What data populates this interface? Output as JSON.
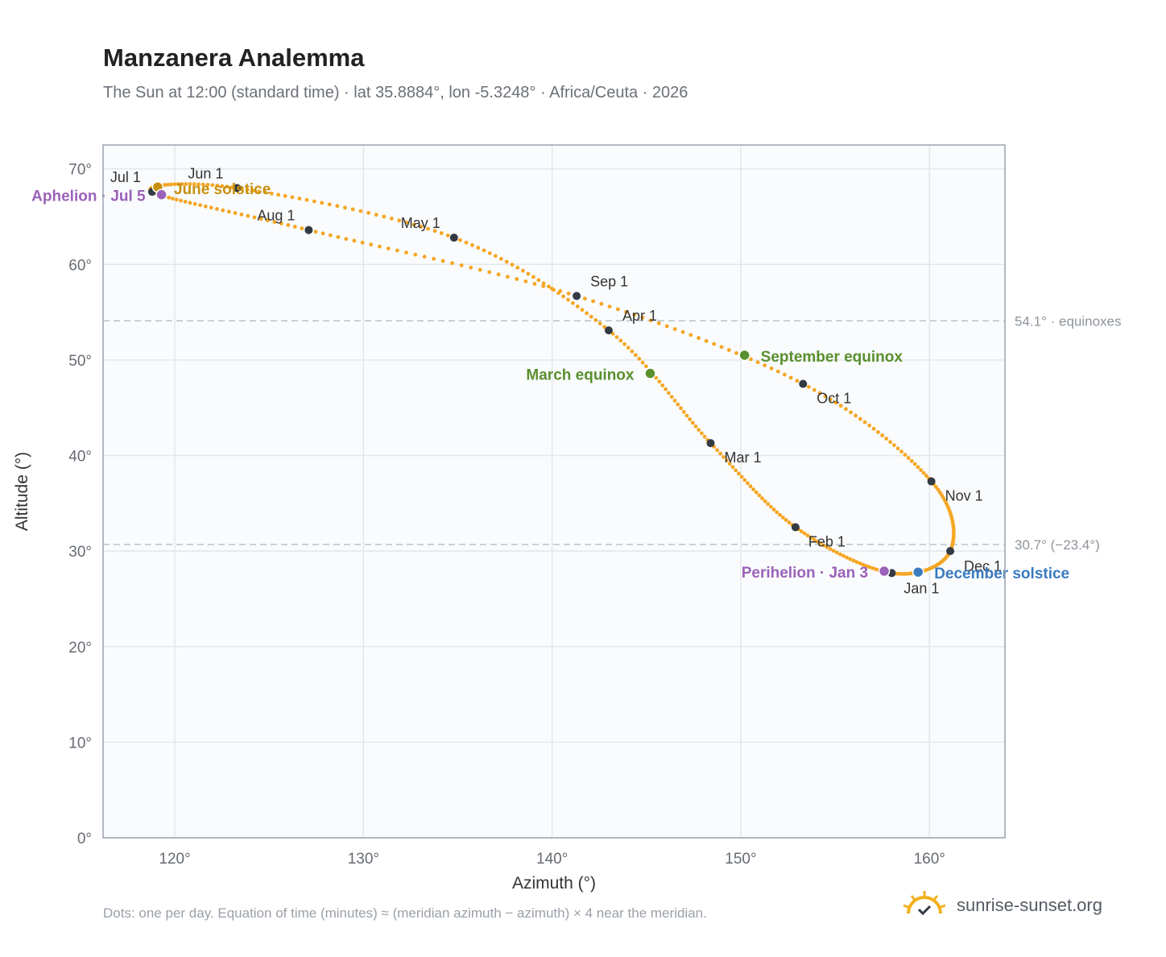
{
  "header": {
    "title": "Manzanera Analemma",
    "subtitle": "The Sun at 12:00 (standard time) · lat 35.8884°, lon -5.3248° · Africa/Ceuta · 2026"
  },
  "footer": {
    "note": "Dots: one per day. Equation of time (minutes) ≈ (meridian azimuth − azimuth) × 4 near the meridian.",
    "brand": "sunrise-sunset.org"
  },
  "colors": {
    "curve": "#f5a623",
    "month_dot": "#333a44",
    "equinox": "#5a8f2e",
    "june_solstice": "#c8900f",
    "december_solstice": "#3a7abf",
    "apsis": "#9b62b8",
    "grid": "#e3e7ec",
    "plot_bg": "#f9fbfd",
    "ref_line": "#b9c2cc"
  },
  "chart_data": {
    "type": "scatter",
    "xlabel": "Azimuth (°)",
    "ylabel": "Altitude (°)",
    "xlim": [
      116.2,
      164
    ],
    "ylim": [
      0,
      72.5
    ],
    "x_ticks": [
      120,
      130,
      140,
      150,
      160
    ],
    "y_ticks": [
      0,
      10,
      20,
      30,
      40,
      50,
      60,
      70
    ],
    "tick_suffix": "°",
    "grid": true,
    "reference_lines": [
      {
        "y": 54.1,
        "label": "54.1° · equinoxes"
      },
      {
        "y": 30.7,
        "label": "30.7° (−23.4°)"
      }
    ],
    "month_markers": [
      {
        "label": "Jan 1",
        "x": 158.0,
        "y": 27.7
      },
      {
        "label": "Feb 1",
        "x": 152.9,
        "y": 32.5
      },
      {
        "label": "Mar 1",
        "x": 148.4,
        "y": 41.3
      },
      {
        "label": "Apr 1",
        "x": 143.0,
        "y": 53.1
      },
      {
        "label": "May 1",
        "x": 134.8,
        "y": 62.8
      },
      {
        "label": "Jun 1",
        "x": 123.3,
        "y": 68.0
      },
      {
        "label": "Jul 1",
        "x": 118.8,
        "y": 67.6
      },
      {
        "label": "Aug 1",
        "x": 127.1,
        "y": 63.6
      },
      {
        "label": "Sep 1",
        "x": 141.3,
        "y": 56.7
      },
      {
        "label": "Oct 1",
        "x": 153.3,
        "y": 47.5
      },
      {
        "label": "Nov 1",
        "x": 160.1,
        "y": 37.3
      },
      {
        "label": "Dec 1",
        "x": 161.1,
        "y": 30.0
      }
    ],
    "events": [
      {
        "label": "March equinox",
        "x": 145.2,
        "y": 48.6,
        "kind": "equinox"
      },
      {
        "label": "June solstice",
        "x": 119.1,
        "y": 68.1,
        "kind": "june_solstice"
      },
      {
        "label": "Aphelion · Jul 5",
        "x": 119.3,
        "y": 67.3,
        "kind": "apsis"
      },
      {
        "label": "September equinox",
        "x": 150.2,
        "y": 50.5,
        "kind": "equinox"
      },
      {
        "label": "December solstice",
        "x": 159.4,
        "y": 27.8,
        "kind": "december_solstice"
      },
      {
        "label": "Perihelion · Jan 3",
        "x": 157.6,
        "y": 27.9,
        "kind": "apsis"
      }
    ]
  }
}
